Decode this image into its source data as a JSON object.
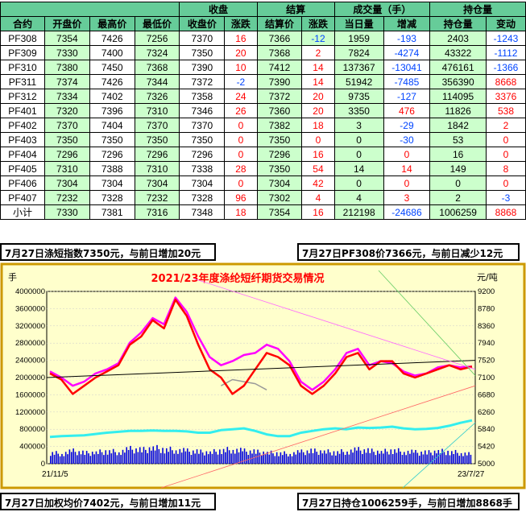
{
  "table": {
    "group_headers": {
      "settle": "收盘",
      "settlement": "结算",
      "volume": "成交量（手）",
      "oi": "持仓量"
    },
    "columns": [
      "合约",
      "开盘价",
      "最高价",
      "最低价",
      "收盘价",
      "涨跌",
      "结算价",
      "涨跌",
      "当日量",
      "增减",
      "持仓量",
      "变动"
    ],
    "rows": [
      [
        "PF308",
        "7354",
        "7426",
        "7256",
        "7370",
        "16",
        "7366",
        "-12",
        "1959",
        "-193",
        "2403",
        "-1243"
      ],
      [
        "PF309",
        "7330",
        "7400",
        "7324",
        "7350",
        "20",
        "7368",
        "2",
        "7824",
        "-4274",
        "43322",
        "-1112"
      ],
      [
        "PF310",
        "7380",
        "7450",
        "7368",
        "7390",
        "10",
        "7412",
        "14",
        "137367",
        "-13041",
        "476161",
        "-1366"
      ],
      [
        "PF311",
        "7374",
        "7426",
        "7344",
        "7372",
        "-2",
        "7390",
        "14",
        "51942",
        "-7485",
        "356390",
        "8668"
      ],
      [
        "PF312",
        "7334",
        "7402",
        "7326",
        "7358",
        "24",
        "7372",
        "20",
        "9735",
        "-127",
        "114095",
        "3376"
      ],
      [
        "PF401",
        "7320",
        "7396",
        "7310",
        "7346",
        "26",
        "7360",
        "20",
        "3350",
        "476",
        "11826",
        "538"
      ],
      [
        "PF402",
        "7370",
        "7404",
        "7370",
        "7370",
        "0",
        "7382",
        "18",
        "3",
        "-29",
        "1842",
        "2"
      ],
      [
        "PF403",
        "7350",
        "7350",
        "7350",
        "7350",
        "0",
        "7350",
        "0",
        "0",
        "-30",
        "53",
        "0"
      ],
      [
        "PF404",
        "7296",
        "7296",
        "7296",
        "7296",
        "0",
        "7296",
        "16",
        "0",
        "0",
        "16",
        "0"
      ],
      [
        "PF405",
        "7310",
        "7388",
        "7310",
        "7338",
        "28",
        "7350",
        "54",
        "14",
        "14",
        "149",
        "8"
      ],
      [
        "PF406",
        "7304",
        "7304",
        "7304",
        "7304",
        "0",
        "7304",
        "42",
        "0",
        "0",
        "0",
        "0"
      ],
      [
        "PF407",
        "7232",
        "7328",
        "7232",
        "7328",
        "96",
        "7302",
        "4",
        "4",
        "3",
        "2",
        "-3"
      ],
      [
        "小计",
        "7330",
        "7381",
        "7316",
        "7348",
        "18",
        "7354",
        "16",
        "212198",
        "-24686",
        "1006259",
        "8868"
      ]
    ]
  },
  "captions": {
    "top_left": "7月27日涤短指数7350元，与前日增加20元",
    "top_right": "7月27日PF308价7366元，与前日减少12元",
    "bottom_left": "7月27日加权均价7402元，与前日增加11元",
    "bottom_right": "7月27日持仓1006259手，与前日增加8868手"
  },
  "chart_data": {
    "type": "line",
    "title": "2021/23年度涤纶短纤期货交易情况",
    "left_unit": "手",
    "right_unit": "元/吨",
    "left_ticks": [
      "4000000",
      "3600000",
      "3200000",
      "2800000",
      "2400000",
      "2000000",
      "1600000",
      "1200000",
      "800000",
      "400000",
      "0"
    ],
    "right_ticks": [
      "9200",
      "8780",
      "8360",
      "7940",
      "7520",
      "7100",
      "6680",
      "6260",
      "5840",
      "5420",
      "5000"
    ],
    "ylim_left": [
      0,
      4000000
    ],
    "ylim_right": [
      5000,
      9200
    ],
    "x_start": "21/11/5",
    "x_end": "23/7/27",
    "colors": {
      "price": "#ff0000",
      "settle": "#ff00ff",
      "other": "#999999",
      "oi": "#33eeee",
      "volume": "#0000dd",
      "bg": "#ffffcc"
    },
    "series": [
      {
        "key": "price",
        "values": [
          7200,
          7050,
          6700,
          6900,
          7100,
          7250,
          7400,
          7900,
          8100,
          8500,
          8300,
          9000,
          8600,
          7900,
          7300,
          7100,
          6700,
          6900,
          7300,
          7700,
          7600,
          7400,
          6900,
          6700,
          6900,
          7200,
          7600,
          7700,
          7300,
          7500,
          7500,
          7200,
          7100,
          7200,
          7300,
          7400,
          7300,
          7366
        ]
      },
      {
        "key": "settle",
        "values": [
          7250,
          7100,
          6900,
          7000,
          7200,
          7300,
          7450,
          7950,
          8200,
          8550,
          8400,
          9050,
          8700,
          8100,
          7600,
          7400,
          7500,
          7650,
          7700,
          7900,
          7800,
          7500,
          7000,
          6800,
          7000,
          7300,
          7700,
          7800,
          7400,
          7500,
          7450,
          7250,
          7150,
          7200,
          7350,
          7400,
          7350,
          7370
        ]
      },
      {
        "key": "other",
        "values": [
          null,
          null,
          null,
          null,
          null,
          null,
          null,
          null,
          null,
          null,
          null,
          null,
          null,
          null,
          null,
          6900,
          7050,
          7000,
          6950,
          6800,
          null,
          null,
          null,
          null,
          null,
          null,
          null,
          null,
          null,
          null,
          null,
          null,
          null,
          null,
          null,
          null,
          null,
          null
        ]
      },
      {
        "key": "oi",
        "values": [
          620000,
          640000,
          650000,
          660000,
          690000,
          720000,
          740000,
          760000,
          760000,
          770000,
          760000,
          760000,
          750000,
          720000,
          720000,
          780000,
          800000,
          820000,
          760000,
          680000,
          640000,
          640000,
          720000,
          760000,
          800000,
          820000,
          800000,
          840000,
          830000,
          840000,
          860000,
          820000,
          800000,
          810000,
          830000,
          880000,
          950000,
          1006259
        ]
      },
      {
        "key": "volume",
        "values": [
          260000,
          240000,
          300000,
          250000,
          270000,
          300000,
          280000,
          350000,
          320000,
          380000,
          340000,
          330000,
          300000,
          280000,
          270000,
          320000,
          340000,
          300000,
          280000,
          260000,
          250000,
          240000,
          280000,
          300000,
          290000,
          270000,
          300000,
          330000,
          300000,
          280000,
          320000,
          290000,
          270000,
          260000,
          300000,
          280000,
          260000,
          212198
        ]
      }
    ],
    "trendline": {
      "from": 7100,
      "to": 7520
    }
  }
}
